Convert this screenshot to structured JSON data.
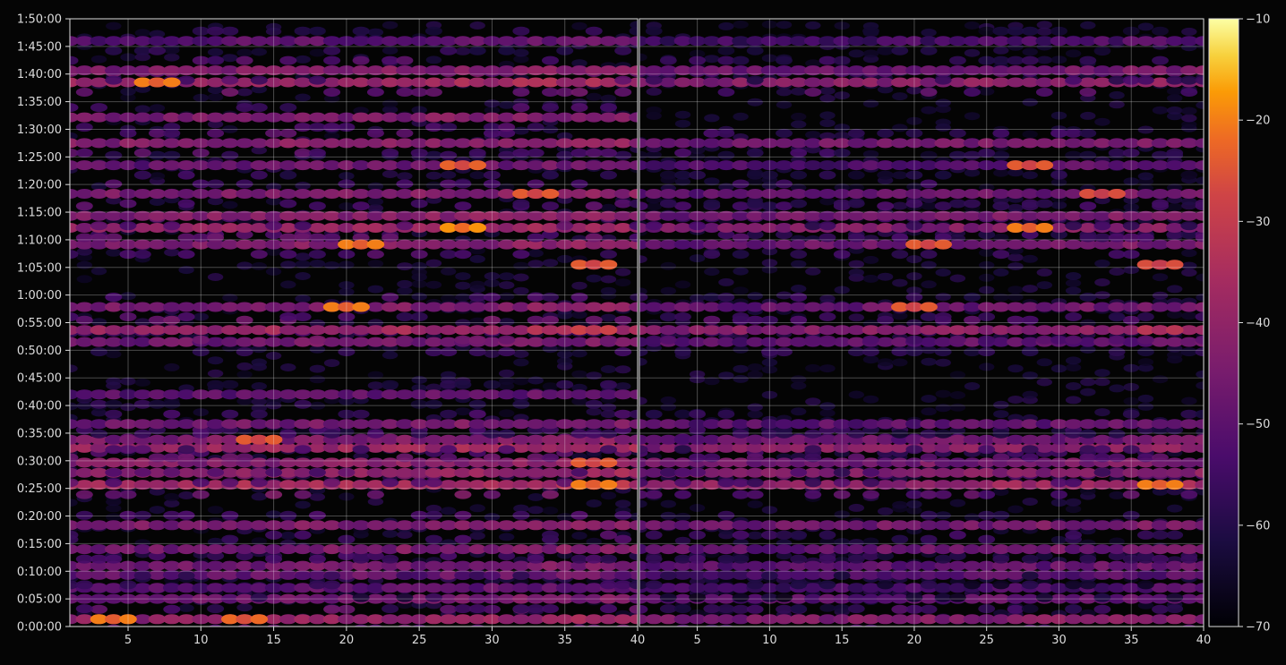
{
  "chart_data": {
    "type": "heatmap",
    "title": "",
    "xlabel": "",
    "ylabel": "",
    "background": "#050505",
    "grid": true,
    "colormap": "inferno",
    "colorbar": {
      "min": -70,
      "max": -10,
      "ticks": [
        -70,
        -60,
        -50,
        -40,
        -30,
        -20,
        -10
      ],
      "tick_labels": [
        "−70",
        "−60",
        "−50",
        "−40",
        "−30",
        "−20",
        "−10"
      ],
      "placement": "right"
    },
    "y_axis": {
      "range_seconds": [
        0,
        6600
      ],
      "ticks": [
        0,
        300,
        600,
        900,
        1200,
        1500,
        1800,
        2100,
        2400,
        2700,
        3000,
        3300,
        3600,
        3900,
        4200,
        4500,
        4800,
        5100,
        5400,
        5700,
        6000,
        6300,
        6600
      ],
      "tick_labels": [
        "0:00:00",
        "0:05:00",
        "0:10:00",
        "0:15:00",
        "0:20:00",
        "0:25:00",
        "0:30:00",
        "0:35:00",
        "0:40:00",
        "0:45:00",
        "0:50:00",
        "0:55:00",
        "1:00:00",
        "1:05:00",
        "1:10:00",
        "1:15:00",
        "1:20:00",
        "1:25:00",
        "1:30:00",
        "1:35:00",
        "1:40:00",
        "1:45:00",
        "1:50:00"
      ]
    },
    "panels": [
      {
        "name": "left",
        "x_range": [
          1,
          40
        ],
        "x_ticks": [
          5,
          10,
          15,
          20,
          25,
          30,
          35,
          40
        ],
        "x_tick_labels": [
          "5",
          "10",
          "15",
          "20",
          "25",
          "30",
          "35",
          "40"
        ],
        "row_times_seconds": [
          80,
          300,
          420,
          560,
          660,
          840,
          1100,
          1540,
          1670,
          1780,
          1940,
          2030,
          2200,
          2520,
          3090,
          3220,
          3470,
          4150,
          4330,
          4460,
          4700,
          5010,
          5250,
          5530,
          5910,
          6040,
          6360
        ],
        "row_strengths": [
          -42,
          -48,
          -52,
          -50,
          -48,
          -47,
          -46,
          -38,
          -42,
          -44,
          -40,
          -46,
          -48,
          -52,
          -48,
          -40,
          -46,
          -45,
          -42,
          -44,
          -46,
          -50,
          -44,
          -46,
          -40,
          -45,
          -52
        ]
      },
      {
        "name": "right",
        "x_range": [
          1,
          40
        ],
        "x_ticks": [
          5,
          10,
          15,
          20,
          25,
          30,
          35,
          40
        ],
        "x_tick_labels": [
          "5",
          "10",
          "15",
          "20",
          "25",
          "30",
          "35",
          "40"
        ],
        "row_times_seconds": [
          80,
          300,
          420,
          560,
          660,
          840,
          1100,
          1540,
          1670,
          1780,
          1940,
          2030,
          2200,
          3090,
          3220,
          3470,
          4150,
          4330,
          4460,
          4700,
          5010,
          5250,
          5910,
          6040,
          6360
        ],
        "row_strengths": [
          -46,
          -52,
          -56,
          -54,
          -52,
          -50,
          -48,
          -42,
          -46,
          -48,
          -44,
          -50,
          -52,
          -52,
          -44,
          -50,
          -49,
          -46,
          -48,
          -50,
          -54,
          -48,
          -44,
          -49,
          -56
        ]
      }
    ],
    "hot_spots": [
      {
        "panel": "left",
        "x": 4,
        "t": 80,
        "value": -24
      },
      {
        "panel": "left",
        "x": 13,
        "t": 80,
        "value": -26
      },
      {
        "panel": "left",
        "x": 37,
        "t": 1540,
        "value": -24
      },
      {
        "panel": "left",
        "x": 37,
        "t": 1780,
        "value": -28
      },
      {
        "panel": "left",
        "x": 14,
        "t": 2030,
        "value": -28
      },
      {
        "panel": "left",
        "x": 20,
        "t": 3470,
        "value": -24
      },
      {
        "panel": "left",
        "x": 37,
        "t": 3220,
        "value": -32
      },
      {
        "panel": "left",
        "x": 37,
        "t": 3930,
        "value": -28
      },
      {
        "panel": "left",
        "x": 21,
        "t": 4150,
        "value": -24
      },
      {
        "panel": "left",
        "x": 28,
        "t": 4330,
        "value": -22
      },
      {
        "panel": "left",
        "x": 33,
        "t": 4700,
        "value": -28
      },
      {
        "panel": "left",
        "x": 28,
        "t": 5010,
        "value": -27
      },
      {
        "panel": "left",
        "x": 7,
        "t": 5910,
        "value": -24
      },
      {
        "panel": "right",
        "x": 37,
        "t": 1540,
        "value": -24
      },
      {
        "panel": "right",
        "x": 28,
        "t": 4330,
        "value": -24
      },
      {
        "panel": "right",
        "x": 21,
        "t": 4150,
        "value": -28
      },
      {
        "panel": "right",
        "x": 33,
        "t": 4700,
        "value": -30
      },
      {
        "panel": "right",
        "x": 28,
        "t": 5010,
        "value": -28
      },
      {
        "panel": "right",
        "x": 37,
        "t": 3930,
        "value": -30
      },
      {
        "panel": "right",
        "x": 20,
        "t": 3470,
        "value": -28
      },
      {
        "panel": "right",
        "x": 37,
        "t": 3220,
        "value": -36
      }
    ]
  }
}
